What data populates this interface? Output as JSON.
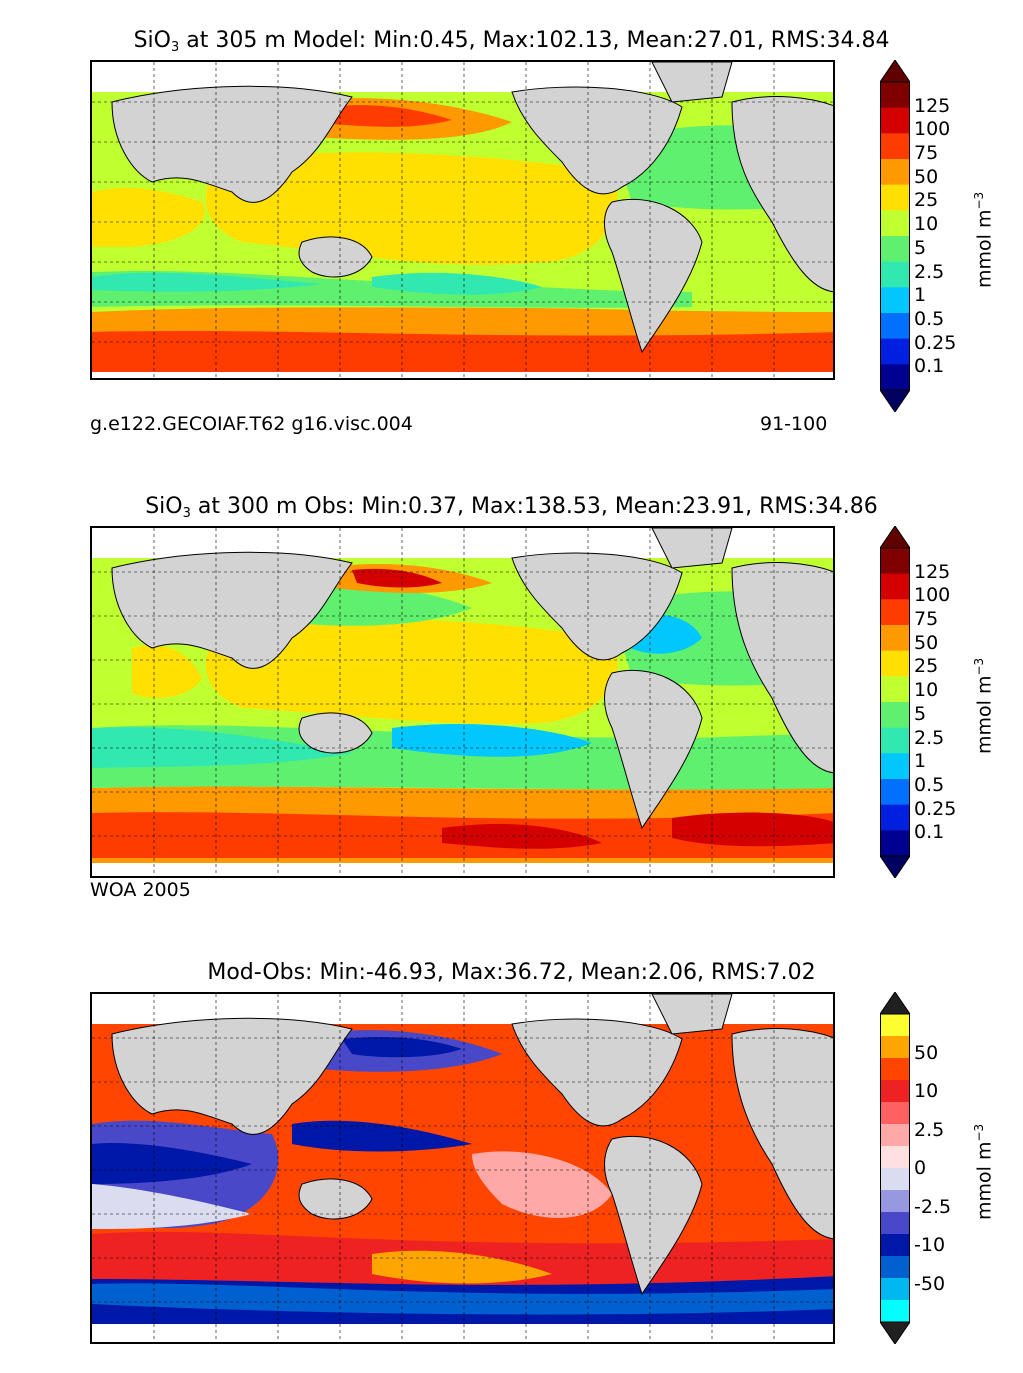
{
  "panels": [
    {
      "title_prefix": "SiO",
      "title_sub": "3",
      "title_rest": " at 305 m Model: Min:0.45, Max:102.13, Mean:27.01, RMS:34.84",
      "caption_left": "g.e122.GECOIAF.T62 g16.visc.004",
      "caption_right": "91-100"
    },
    {
      "title_prefix": "SiO",
      "title_sub": "3",
      "title_rest": " at 300 m Obs: Min:0.37, Max:138.53, Mean:23.91, RMS:34.86",
      "caption_left": "WOA 2005",
      "caption_right": ""
    },
    {
      "title_prefix": "",
      "title_sub": "",
      "title_rest": "Mod-Obs: Min:-46.93, Max:36.72, Mean:2.06, RMS:7.02",
      "caption_left": "",
      "caption_right": ""
    }
  ],
  "colorbars": [
    {
      "unit": "mmol m",
      "unit_sup": "−3",
      "levels": [
        "125",
        "100",
        "75",
        "50",
        "25",
        "10",
        "5",
        "2.5",
        "1",
        "0.5",
        "0.25",
        "0.1"
      ],
      "colors": [
        "#800000",
        "#d40000",
        "#ff3c00",
        "#ff9900",
        "#ffe000",
        "#c0ff30",
        "#60f070",
        "#30e8b0",
        "#00c8ff",
        "#0070ff",
        "#0020e0",
        "#000090"
      ],
      "top_color": "#600000",
      "bottom_color": "#000060"
    },
    {
      "unit": "mmol m",
      "unit_sup": "−3",
      "levels": [
        "125",
        "100",
        "75",
        "50",
        "25",
        "10",
        "5",
        "2.5",
        "1",
        "0.5",
        "0.25",
        "0.1"
      ],
      "colors": [
        "#800000",
        "#d40000",
        "#ff3c00",
        "#ff9900",
        "#ffe000",
        "#c0ff30",
        "#60f070",
        "#30e8b0",
        "#00c8ff",
        "#0070ff",
        "#0020e0",
        "#000090"
      ],
      "top_color": "#600000",
      "bottom_color": "#000060"
    },
    {
      "unit": "mmol m",
      "unit_sup": "−3",
      "levels": [
        "50",
        "10",
        "2.5",
        "0",
        "-2.5",
        "-10",
        "-50"
      ],
      "colors": [
        "#ffff30",
        "#ffa500",
        "#ff4500",
        "#ee2222",
        "#ff6060",
        "#ffa8a8",
        "#ffe0e0",
        "#dcdcf0",
        "#9898e0",
        "#4848c8",
        "#0018a8",
        "#0060d0",
        "#00b8f0",
        "#00ffff"
      ],
      "top_color": "#202020",
      "bottom_color": "#202020"
    }
  ],
  "chart_data": [
    {
      "type": "heatmap",
      "title": "SiO3 at 305 m Model: Min:0.45, Max:102.13, Mean:27.01, RMS:34.84",
      "variable": "SiO3",
      "depth_m": 305,
      "source": "Model",
      "stats": {
        "min": 0.45,
        "max": 102.13,
        "mean": 27.01,
        "rms": 34.84
      },
      "colorbar_levels": [
        0.1,
        0.25,
        0.5,
        1,
        2.5,
        5,
        10,
        25,
        50,
        75,
        100,
        125
      ],
      "units": "mmol m^-3",
      "grid": true
    },
    {
      "type": "heatmap",
      "title": "SiO3 at 300 m Obs: Min:0.37, Max:138.53, Mean:23.91, RMS:34.86",
      "variable": "SiO3",
      "depth_m": 300,
      "source": "Obs",
      "stats": {
        "min": 0.37,
        "max": 138.53,
        "mean": 23.91,
        "rms": 34.86
      },
      "colorbar_levels": [
        0.1,
        0.25,
        0.5,
        1,
        2.5,
        5,
        10,
        25,
        50,
        75,
        100,
        125
      ],
      "units": "mmol m^-3",
      "grid": true
    },
    {
      "type": "heatmap",
      "title": "Mod-Obs: Min:-46.93, Max:36.72, Mean:2.06, RMS:7.02",
      "source": "Mod-Obs",
      "stats": {
        "min": -46.93,
        "max": 36.72,
        "mean": 2.06,
        "rms": 7.02
      },
      "colorbar_levels": [
        -50,
        -10,
        -2.5,
        0,
        2.5,
        10,
        50
      ],
      "units": "mmol m^-3",
      "grid": true
    }
  ]
}
